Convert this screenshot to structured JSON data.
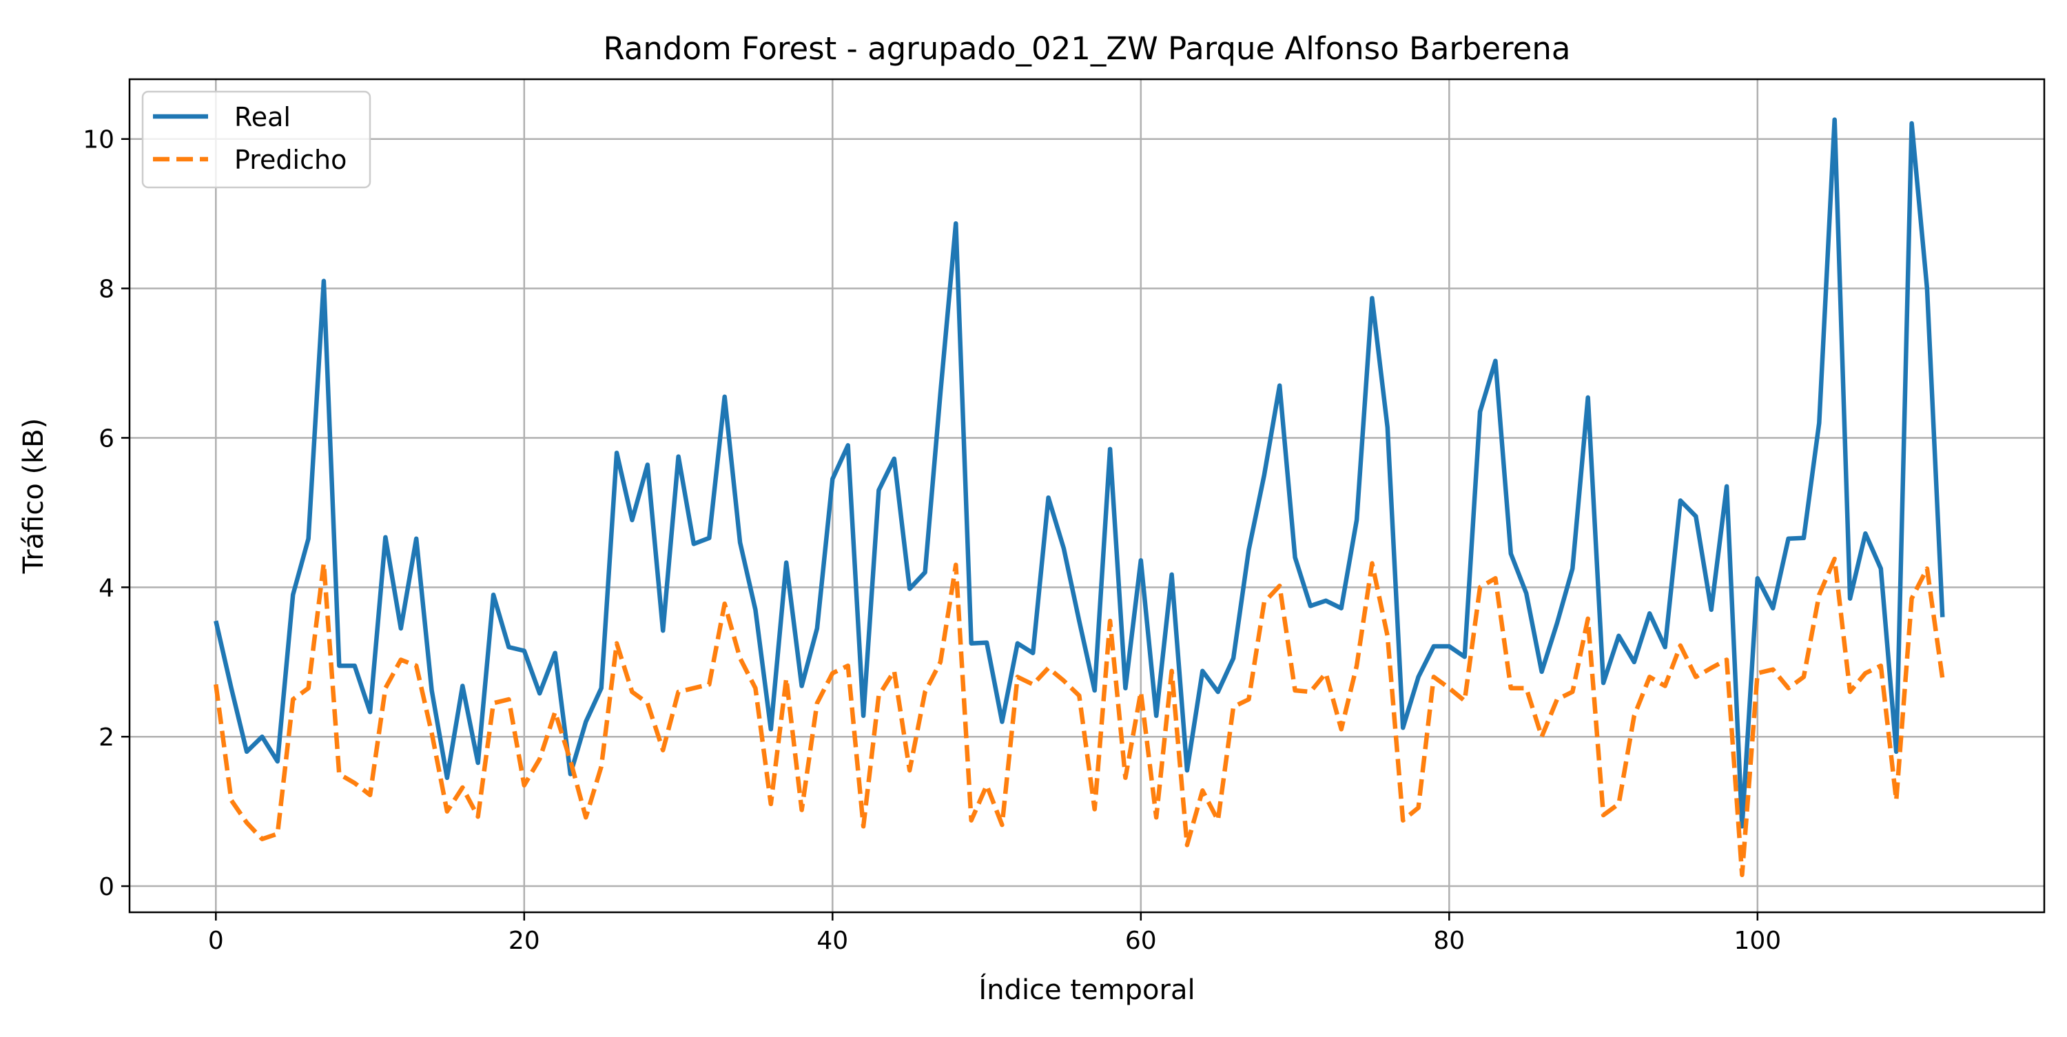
{
  "chart_data": {
    "type": "line",
    "title": "Random Forest - agrupado_021_ZW Parque Alfonso Barberena",
    "xlabel": "Índice temporal",
    "ylabel": "Tráfico (kB)",
    "xlim": [
      -5.6,
      118.6
    ],
    "ylim": [
      -0.35,
      10.8
    ],
    "xticks": [
      0,
      20,
      40,
      60,
      80,
      100
    ],
    "yticks": [
      0,
      2,
      4,
      6,
      8,
      10
    ],
    "grid": true,
    "legend_position": "upper-left",
    "series": [
      {
        "name": "Real",
        "color": "#1f77b4",
        "style": "solid",
        "x": [
          0,
          1,
          2,
          3,
          4,
          5,
          6,
          7,
          8,
          9,
          10,
          11,
          12,
          13,
          14,
          15,
          16,
          17,
          18,
          19,
          20,
          21,
          22,
          23,
          24,
          25,
          26,
          27,
          28,
          29,
          30,
          31,
          32,
          33,
          34,
          35,
          36,
          37,
          38,
          39,
          40,
          41,
          42,
          43,
          44,
          45,
          46,
          47,
          48,
          49,
          50,
          51,
          52,
          53,
          54,
          55,
          56,
          57,
          58,
          59,
          60,
          61,
          62,
          63,
          64,
          65,
          66,
          67,
          68,
          69,
          70,
          71,
          72,
          73,
          74,
          75,
          76,
          77,
          78,
          79,
          80,
          81,
          82,
          83,
          84,
          85,
          86,
          87,
          88,
          89,
          90,
          91,
          92,
          93,
          94,
          95,
          96,
          97,
          98,
          99,
          100,
          101,
          102,
          103,
          104,
          105,
          106,
          107,
          108,
          109,
          110,
          111,
          112
        ],
        "values": [
          3.55,
          2.65,
          1.8,
          2.0,
          1.67,
          3.9,
          4.65,
          8.1,
          2.95,
          2.95,
          2.33,
          4.67,
          3.45,
          4.65,
          2.62,
          1.45,
          2.68,
          1.65,
          3.9,
          3.2,
          3.15,
          2.58,
          3.12,
          1.5,
          2.2,
          2.65,
          5.8,
          4.9,
          5.64,
          3.42,
          5.75,
          4.58,
          4.66,
          6.55,
          4.6,
          3.7,
          2.1,
          4.33,
          2.68,
          3.45,
          5.45,
          5.9,
          2.28,
          5.3,
          5.72,
          3.98,
          4.2,
          6.6,
          8.87,
          3.25,
          3.26,
          2.2,
          3.25,
          3.12,
          5.2,
          4.52,
          3.55,
          2.62,
          5.85,
          2.65,
          4.36,
          2.28,
          4.17,
          1.55,
          2.88,
          2.6,
          3.05,
          4.5,
          5.5,
          6.7,
          4.4,
          3.75,
          3.82,
          3.72,
          4.9,
          7.87,
          6.14,
          2.12,
          2.8,
          3.21,
          3.21,
          3.07,
          6.35,
          7.03,
          4.45,
          3.92,
          2.87,
          3.52,
          4.25,
          6.54,
          2.72,
          3.35,
          3.0,
          3.65,
          3.2,
          5.16,
          4.95,
          3.7,
          5.35,
          0.8,
          4.12,
          3.72,
          4.65,
          4.66,
          6.2,
          10.26,
          3.85,
          4.72,
          4.25,
          1.8,
          10.21,
          8.0,
          3.6
        ]
      },
      {
        "name": "Predicho",
        "color": "#ff7f0e",
        "style": "dashed",
        "x": [
          0,
          1,
          2,
          3,
          4,
          5,
          6,
          7,
          8,
          9,
          10,
          11,
          12,
          13,
          14,
          15,
          16,
          17,
          18,
          19,
          20,
          21,
          22,
          23,
          24,
          25,
          26,
          27,
          28,
          29,
          30,
          31,
          32,
          33,
          34,
          35,
          36,
          37,
          38,
          39,
          40,
          41,
          42,
          43,
          44,
          45,
          46,
          47,
          48,
          49,
          50,
          51,
          52,
          53,
          54,
          55,
          56,
          57,
          58,
          59,
          60,
          61,
          62,
          63,
          64,
          65,
          66,
          67,
          68,
          69,
          70,
          71,
          72,
          73,
          74,
          75,
          76,
          77,
          78,
          79,
          80,
          81,
          82,
          83,
          84,
          85,
          86,
          87,
          88,
          89,
          90,
          91,
          92,
          93,
          94,
          95,
          96,
          97,
          98,
          99,
          100,
          101,
          102,
          103,
          104,
          105,
          106,
          107,
          108,
          109,
          110,
          111,
          112
        ],
        "values": [
          2.7,
          1.15,
          0.85,
          0.63,
          0.7,
          2.5,
          2.65,
          4.32,
          1.5,
          1.38,
          1.22,
          2.65,
          3.03,
          2.95,
          2.05,
          1.0,
          1.32,
          0.93,
          2.45,
          2.5,
          1.35,
          1.7,
          2.33,
          1.68,
          0.92,
          1.6,
          3.25,
          2.6,
          2.45,
          1.82,
          2.6,
          2.65,
          2.7,
          3.78,
          3.05,
          2.65,
          1.1,
          2.78,
          1.02,
          2.45,
          2.85,
          2.95,
          0.8,
          2.55,
          2.88,
          1.55,
          2.6,
          3.0,
          4.3,
          0.88,
          1.35,
          0.82,
          2.8,
          2.7,
          2.92,
          2.75,
          2.55,
          1.03,
          3.55,
          1.45,
          2.6,
          0.92,
          2.88,
          0.55,
          1.28,
          0.88,
          2.4,
          2.5,
          3.8,
          4.02,
          2.62,
          2.6,
          2.85,
          2.1,
          2.95,
          4.32,
          3.35,
          0.88,
          1.05,
          2.8,
          2.65,
          2.48,
          4.0,
          4.12,
          2.65,
          2.65,
          2.0,
          2.5,
          2.6,
          3.58,
          0.95,
          1.1,
          2.28,
          2.8,
          2.68,
          3.22,
          2.8,
          2.92,
          3.03,
          0.15,
          2.85,
          2.9,
          2.65,
          2.8,
          3.9,
          4.38,
          2.6,
          2.85,
          2.95,
          1.15,
          3.85,
          4.25,
          2.78
        ]
      }
    ]
  }
}
